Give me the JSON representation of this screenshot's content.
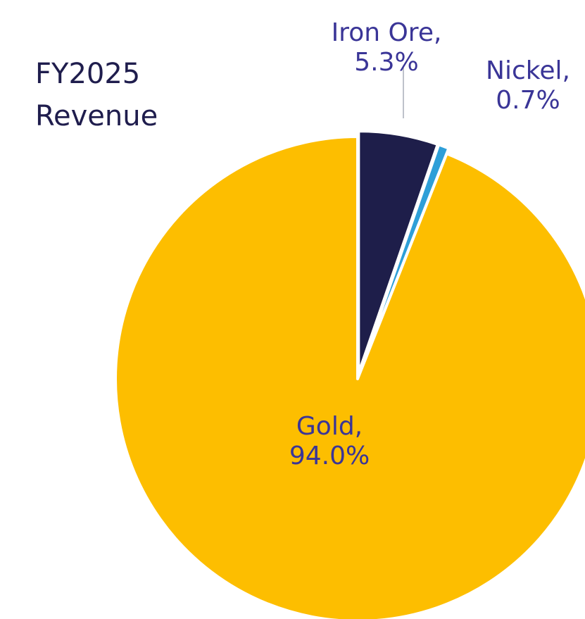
{
  "chart_data": {
    "type": "pie",
    "title_lines": [
      "FY2025",
      "Revenue"
    ],
    "start_angle_deg": 0,
    "direction": "clockwise",
    "slices": [
      {
        "label": "Iron Ore",
        "value": 5.3,
        "value_text": "5.3%",
        "color": "#1e1e4a",
        "exploded": true
      },
      {
        "label": "Nickel",
        "value": 0.7,
        "value_text": "0.7%",
        "color": "#2e9fd8",
        "exploded": true
      },
      {
        "label": "Gold",
        "value": 94.0,
        "value_text": "94.0%",
        "color": "#fdbe00",
        "exploded": false
      }
    ],
    "label_color": "#3a3597",
    "leader_line_color": "#a8adb8",
    "legend": "none"
  }
}
